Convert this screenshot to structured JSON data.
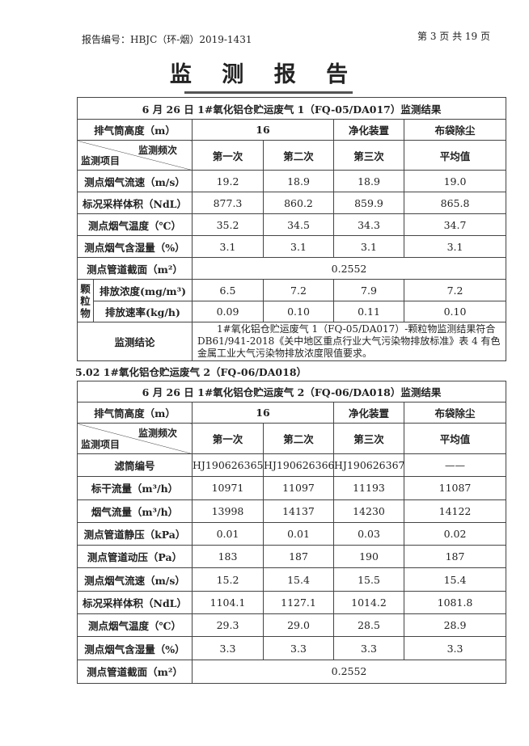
{
  "header": {
    "report_no": "报告编号：HBJC（环-烟）2019-1431",
    "page": "第 3 页 共 19 页"
  },
  "title": "监 测 报 告",
  "table1": {
    "caption": "6 月 26 日 1#氧化铝仓贮运废气 1（FQ-05/DA017）监测结果",
    "stack_height_label": "排气筒高度（m）",
    "stack_height": "16",
    "purifier_label": "净化装置",
    "purifier": "布袋除尘",
    "diag_top": "监测频次",
    "diag_bottom": "监测项目",
    "cols": [
      "第一次",
      "第二次",
      "第三次",
      "平均值"
    ],
    "rows": [
      {
        "label": "测点烟气流速（m/s）",
        "values": [
          "19.2",
          "18.9",
          "18.9",
          "19.0"
        ]
      },
      {
        "label": "标况采样体积（NdL）",
        "values": [
          "877.3",
          "860.2",
          "859.9",
          "865.8"
        ]
      },
      {
        "label": "测点烟气温度（℃）",
        "values": [
          "35.2",
          "34.5",
          "34.3",
          "34.7"
        ]
      },
      {
        "label": "测点烟气含湿量（%）",
        "values": [
          "3.1",
          "3.1",
          "3.1",
          "3.1"
        ]
      }
    ],
    "section_label": "测点管道截面（m²）",
    "section_value": "0.2552",
    "group_label": "颗粒物",
    "group_rows": [
      {
        "label": "排放浓度(mg/m³)",
        "values": [
          "6.5",
          "7.2",
          "7.9",
          "7.2"
        ]
      },
      {
        "label": "排放速率(kg/h)",
        "values": [
          "0.09",
          "0.10",
          "0.11",
          "0.10"
        ]
      }
    ],
    "conclusion_label": "监测结论",
    "conclusion": "1#氧化铝仓贮运废气 1（FQ-05/DA017）-颗粒物监测结果符合 DB61/941-2018《关中地区重点行业大气污染物排放标准》表 4 有色金属工业大气污染物排放浓度限值要求。"
  },
  "section_heading": "5.02   1#氧化铝仓贮运废气 2（FQ-06/DA018）",
  "table2": {
    "caption": "6 月 26 日 1#氧化铝仓贮运废气 2（FQ-06/DA018）监测结果",
    "stack_height_label": "排气筒高度（m）",
    "stack_height": "16",
    "purifier_label": "净化装置",
    "purifier": "布袋除尘",
    "diag_top": "监测频次",
    "diag_bottom": "监测项目",
    "cols": [
      "第一次",
      "第二次",
      "第三次",
      "平均值"
    ],
    "rows": [
      {
        "label": "滤筒编号",
        "values": [
          "HJ190626365",
          "HJ190626366",
          "HJ190626367",
          "——"
        ]
      },
      {
        "label": "标干流量（m³/h）",
        "values": [
          "10971",
          "11097",
          "11193",
          "11087"
        ]
      },
      {
        "label": "烟气流量（m³/h）",
        "values": [
          "13998",
          "14137",
          "14230",
          "14122"
        ]
      },
      {
        "label": "测点管道静压（kPa）",
        "values": [
          "0.01",
          "0.01",
          "0.03",
          "0.02"
        ]
      },
      {
        "label": "测点管道动压（Pa）",
        "values": [
          "183",
          "187",
          "190",
          "187"
        ]
      },
      {
        "label": "测点烟气流速（m/s）",
        "values": [
          "15.2",
          "15.4",
          "15.5",
          "15.4"
        ]
      },
      {
        "label": "标况采样体积（NdL）",
        "values": [
          "1104.1",
          "1127.1",
          "1014.2",
          "1081.8"
        ]
      },
      {
        "label": "测点烟气温度（℃）",
        "values": [
          "29.3",
          "29.0",
          "28.5",
          "28.9"
        ]
      },
      {
        "label": "测点烟气含湿量（%）",
        "values": [
          "3.3",
          "3.3",
          "3.3",
          "3.3"
        ]
      }
    ],
    "section_label": "测点管道截面（m²）",
    "section_value": "0.2552"
  }
}
